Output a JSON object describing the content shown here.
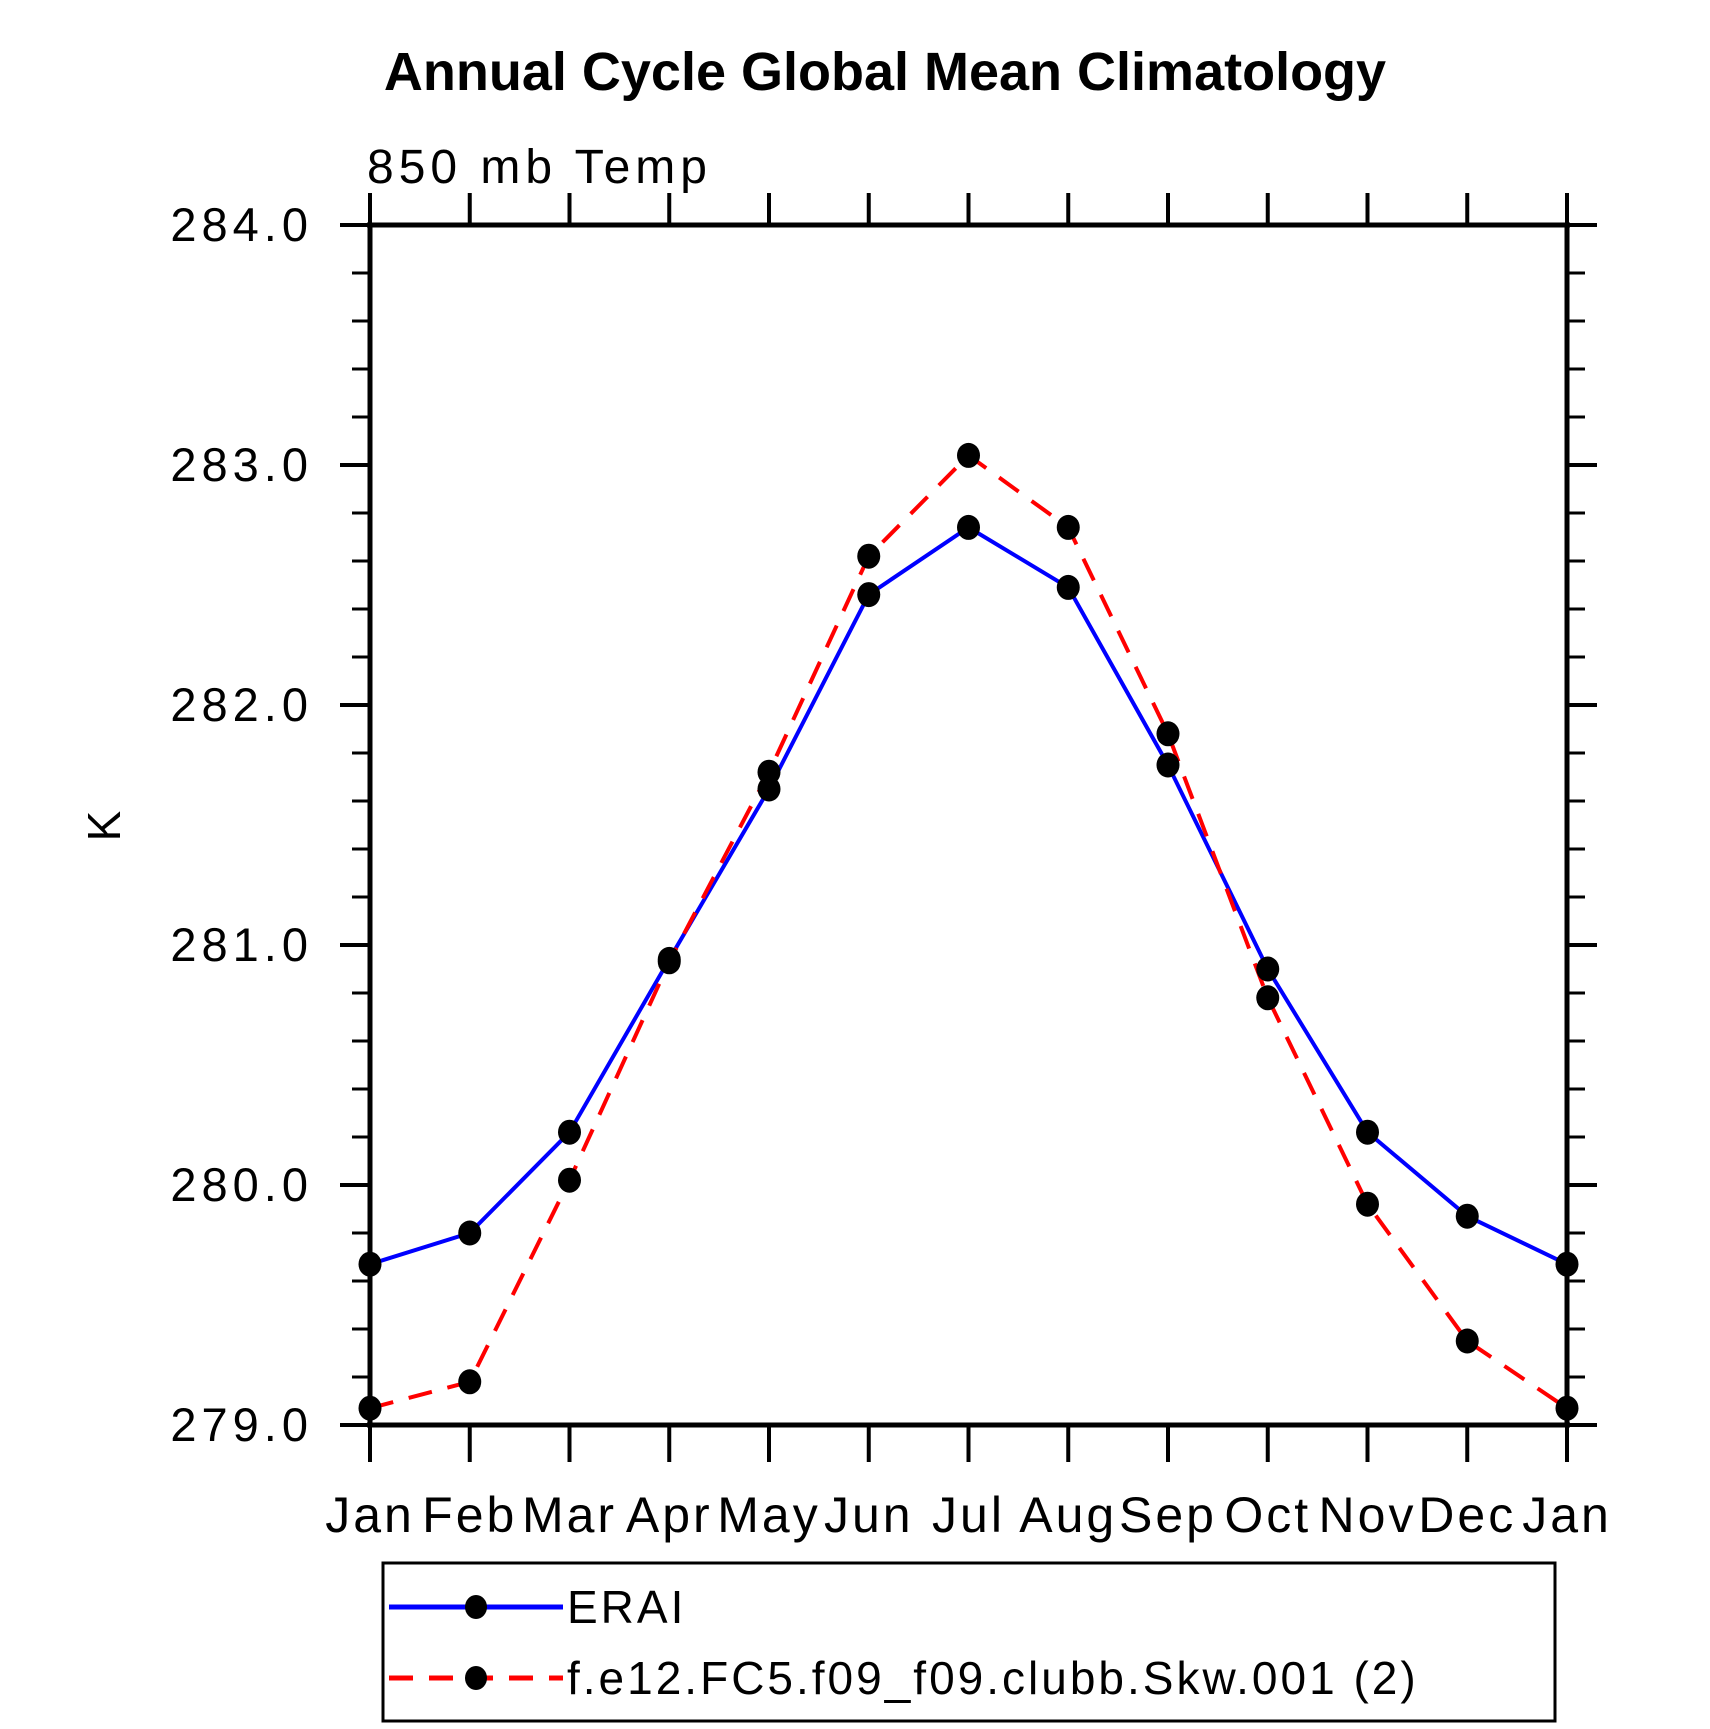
{
  "chart_data": {
    "type": "line",
    "title": "Annual Cycle Global Mean Climatology",
    "subtitle": "850 mb Temp",
    "ylabel": "K",
    "xlabel": "",
    "categories": [
      "Jan",
      "Feb",
      "Mar",
      "Apr",
      "May",
      "Jun",
      "Jul",
      "Aug",
      "Sep",
      "Oct",
      "Nov",
      "Dec",
      "Jan"
    ],
    "ylim": [
      279.0,
      284.0
    ],
    "ytick_major": [
      279.0,
      280.0,
      281.0,
      282.0,
      283.0,
      284.0
    ],
    "ytick_labels": [
      "279.0",
      "280.0",
      "281.0",
      "282.0",
      "283.0",
      "284.0"
    ],
    "ytick_minor_step": 0.2,
    "grid": false,
    "legend_position": "bottom-left",
    "axis_color": "#000000",
    "marker_color": "#000000",
    "series": [
      {
        "name": "ERAI",
        "color": "#0000ff",
        "style": "solid",
        "marker": "circle",
        "values": [
          279.67,
          279.8,
          280.22,
          280.94,
          281.65,
          282.46,
          282.74,
          282.49,
          281.75,
          280.9,
          280.22,
          279.87,
          279.67
        ]
      },
      {
        "name": "f.e12.FC5.f09_f09.clubb.Skw.001 (2)",
        "color": "#ff0000",
        "style": "dashed",
        "marker": "circle",
        "values": [
          279.07,
          279.18,
          280.02,
          280.93,
          281.72,
          282.62,
          283.04,
          282.74,
          281.88,
          280.78,
          279.92,
          279.35,
          279.07
        ]
      }
    ]
  }
}
